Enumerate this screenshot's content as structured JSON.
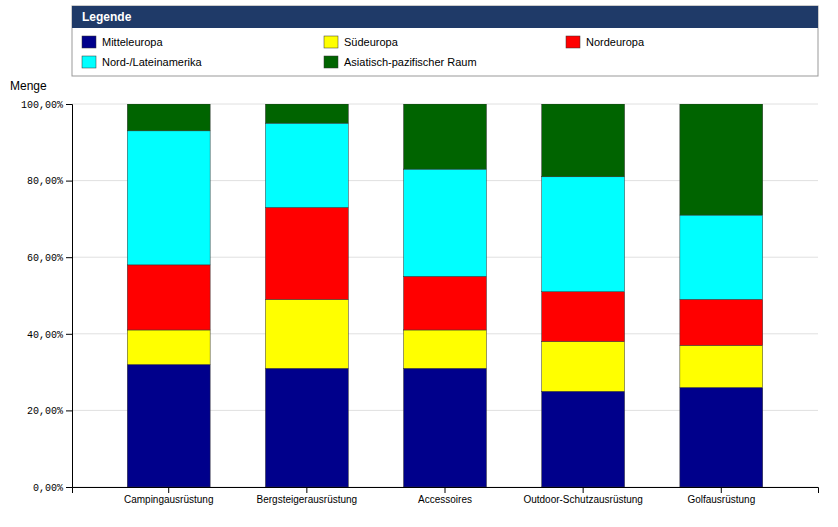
{
  "chart_data": {
    "type": "bar",
    "stacked": true,
    "ylabel": "Menge",
    "legend_title": "Legende",
    "legend": "top",
    "grid": true,
    "categories": [
      "Campingausrüstung",
      "Bergsteigerausrüstung",
      "Accessoires",
      "Outdoor-Schutzausrüstung",
      "Golfausrüstung"
    ],
    "series": [
      {
        "name": "Mitteleuropa",
        "color": "#00008B",
        "values": [
          32,
          31,
          31,
          25,
          26
        ]
      },
      {
        "name": "Südeuropa",
        "color": "#FFFF00",
        "values": [
          9,
          18,
          10,
          13,
          11
        ]
      },
      {
        "name": "Nordeuropa",
        "color": "#FF0000",
        "values": [
          17,
          24,
          14,
          13,
          12
        ]
      },
      {
        "name": "Nord-/Lateinamerika",
        "color": "#00FFFF",
        "values": [
          35,
          22,
          28,
          30,
          22
        ]
      },
      {
        "name": "Asiatisch-pazifischer Raum",
        "color": "#006400",
        "values": [
          7,
          5,
          17,
          19,
          29
        ]
      }
    ],
    "ylim": [
      0,
      100
    ],
    "yticks": [
      {
        "value": 0,
        "label": "0,00%"
      },
      {
        "value": 20,
        "label": "20,00%"
      },
      {
        "value": 40,
        "label": "40,00%"
      },
      {
        "value": 60,
        "label": "60,00%"
      },
      {
        "value": 80,
        "label": "80,00%"
      },
      {
        "value": 100,
        "label": "100,00%"
      }
    ]
  }
}
